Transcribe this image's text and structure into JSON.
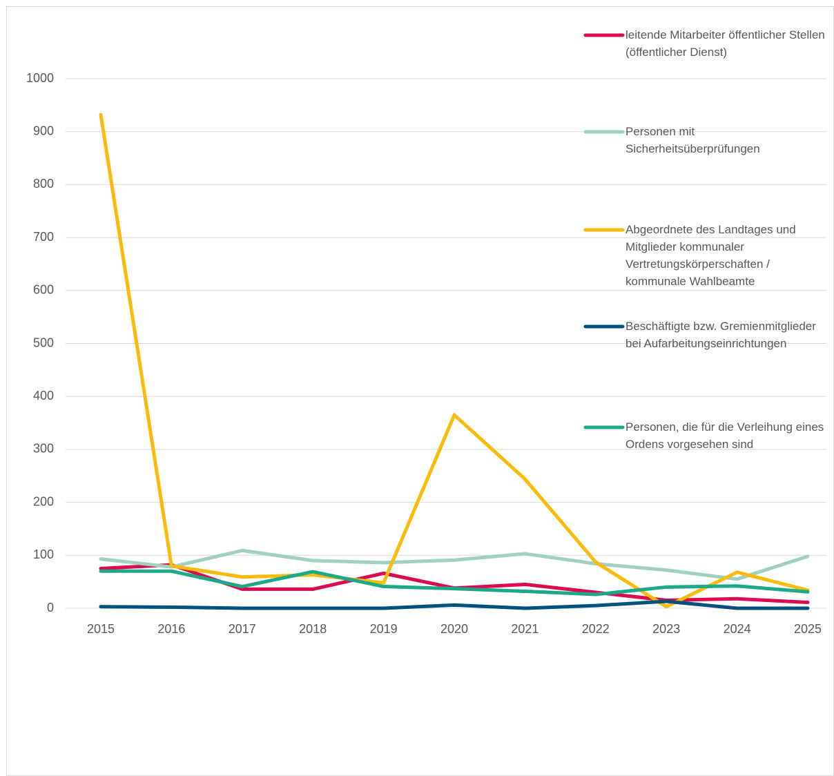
{
  "chart_data": {
    "type": "line",
    "categories": [
      "2015",
      "2016",
      "2017",
      "2018",
      "2019",
      "2020",
      "2021",
      "2022",
      "2023",
      "2024",
      "2025"
    ],
    "series": [
      {
        "name": "leitende Mitarbeiter öffentlicher Stellen (öffentlicher Dienst)",
        "color": "#dc0a4f",
        "values": [
          75,
          82,
          36,
          36,
          66,
          38,
          45,
          30,
          15,
          18,
          11
        ]
      },
      {
        "name": "Personen mit Sicherheitsüberprüfungen",
        "color": "#9fd0bf",
        "values": [
          93,
          78,
          109,
          90,
          86,
          91,
          103,
          84,
          72,
          55,
          98
        ]
      },
      {
        "name": "Abgeordnete des Landtages und Mitglieder kommunaler Vertretungskörperschaften / kommunale Wahlbeamte",
        "color": "#fbbb0b",
        "values": [
          932,
          80,
          59,
          63,
          48,
          365,
          244,
          87,
          3,
          68,
          34
        ]
      },
      {
        "name": "Beschäftigte bzw. Gremienmitglieder bei Aufarbeitungseinrichtungen",
        "color": "#00527e",
        "values": [
          3,
          2,
          0,
          0,
          0,
          6,
          0,
          5,
          13,
          0,
          0
        ]
      },
      {
        "name": "Personen, die für die Verleihung eines Ordens vorgesehen sind",
        "color": "#1ba98a",
        "values": [
          70,
          70,
          41,
          69,
          41,
          37,
          32,
          26,
          40,
          42,
          31
        ]
      }
    ],
    "ylim": [
      0,
      1000
    ],
    "yticks": [
      0,
      100,
      200,
      300,
      400,
      500,
      600,
      700,
      800,
      900,
      1000
    ],
    "grid": true,
    "legend": "right"
  }
}
